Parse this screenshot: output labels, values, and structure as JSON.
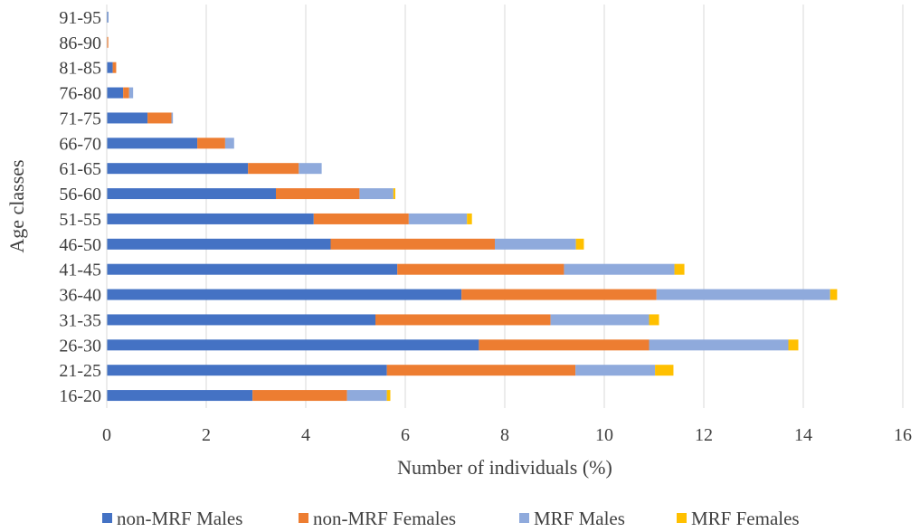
{
  "chart_data": {
    "type": "bar",
    "orientation": "horizontal",
    "stacked": true,
    "title": "",
    "xlabel": "Number of individuals  (%)",
    "ylabel": "Age classes",
    "xlim": [
      0,
      16
    ],
    "x_ticks": [
      0,
      2,
      4,
      6,
      8,
      10,
      12,
      14,
      16
    ],
    "grid": true,
    "legend_position": "bottom",
    "categories": [
      "16-20",
      "21-25",
      "26-30",
      "31-35",
      "36-40",
      "41-45",
      "46-50",
      "51-55",
      "56-60",
      "61-65",
      "66-70",
      "71-75",
      "76-80",
      "81-85",
      "86-90",
      "91-95"
    ],
    "series": [
      {
        "name": "non-MRF Males",
        "color": "#4472C4",
        "values": [
          2.93,
          5.63,
          7.48,
          5.4,
          7.13,
          5.84,
          4.5,
          4.16,
          3.4,
          2.84,
          1.82,
          0.82,
          0.33,
          0.12,
          0.0,
          0.03
        ]
      },
      {
        "name": "non-MRF Females",
        "color": "#ED7D31",
        "values": [
          1.9,
          3.79,
          3.42,
          3.52,
          3.92,
          3.35,
          3.3,
          1.91,
          1.68,
          1.02,
          0.56,
          0.48,
          0.12,
          0.07,
          0.03,
          0.0
        ]
      },
      {
        "name": "MRF Males",
        "color": "#8FAADC",
        "values": [
          0.8,
          1.6,
          2.8,
          1.98,
          3.49,
          2.22,
          1.63,
          1.17,
          0.68,
          0.46,
          0.18,
          0.03,
          0.08,
          0.0,
          0.0,
          0.0
        ]
      },
      {
        "name": "MRF Females",
        "color": "#FFC000",
        "values": [
          0.07,
          0.37,
          0.2,
          0.2,
          0.14,
          0.2,
          0.16,
          0.1,
          0.04,
          0.0,
          0.0,
          0.0,
          0.0,
          0.0,
          0.0,
          0.0
        ]
      }
    ]
  }
}
